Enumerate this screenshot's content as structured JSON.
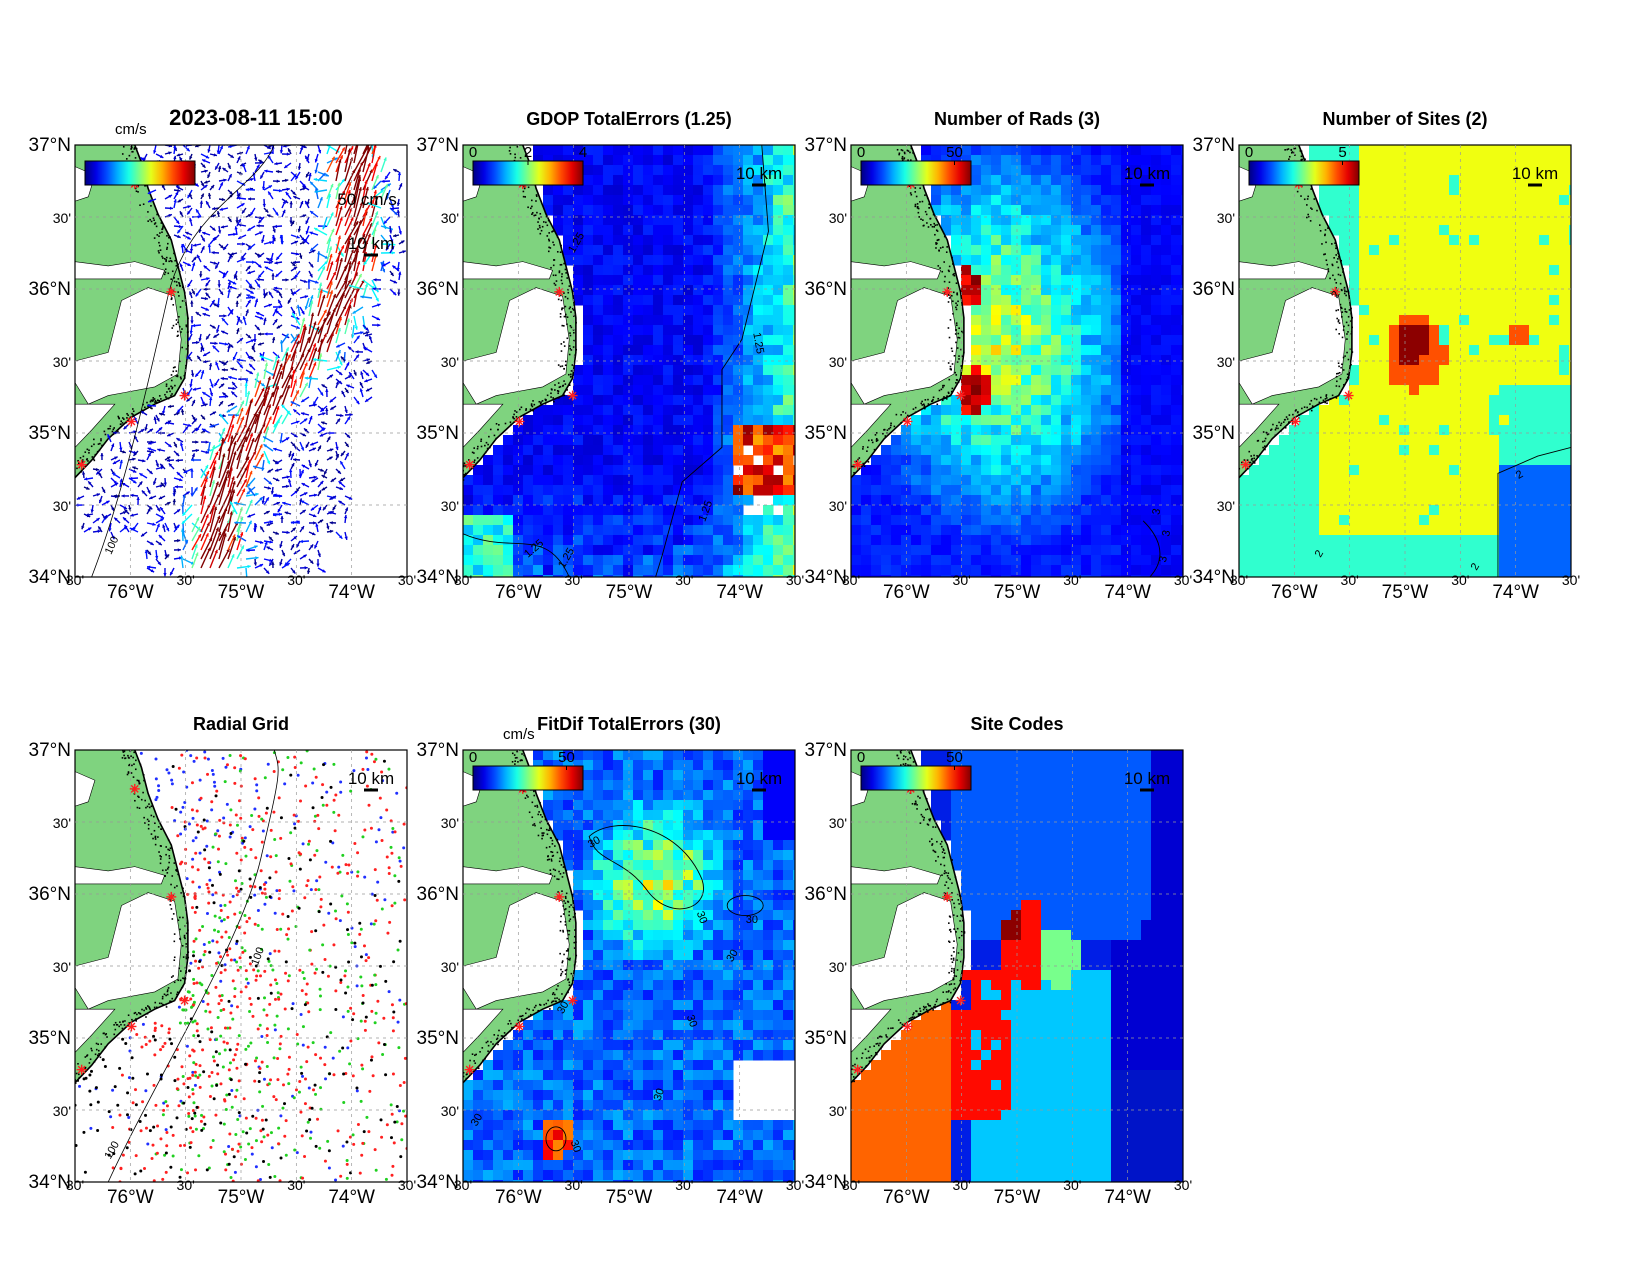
{
  "figure_timestamp": "2023-08-11 15:00",
  "panels": [
    {
      "id": "currents",
      "title": "",
      "colorbar": {
        "unit": "cm/s",
        "ticks": []
      },
      "vector_scale_label": "50 cm/s",
      "scale_bar": "10 km",
      "contour_labels": [
        "100"
      ]
    },
    {
      "id": "gdop",
      "title": "GDOP TotalErrors (1.25)",
      "colorbar": {
        "unit": "",
        "ticks": [
          "0",
          "2",
          "4"
        ]
      },
      "scale_bar": "10 km",
      "contour_labels": [
        "1.25",
        "1.25",
        "1.25",
        "1.25",
        "1.25"
      ]
    },
    {
      "id": "nrads",
      "title": "Number of Rads (3)",
      "colorbar": {
        "unit": "",
        "ticks": [
          "0",
          "50"
        ]
      },
      "scale_bar": "10 km",
      "contour_labels": [
        "3",
        "3",
        "3"
      ]
    },
    {
      "id": "nsites",
      "title": "Number of Sites (2)",
      "colorbar": {
        "unit": "",
        "ticks": [
          "0",
          "5"
        ]
      },
      "scale_bar": "10 km",
      "contour_labels": [
        "2",
        "2",
        "2",
        "2"
      ]
    },
    {
      "id": "radgrid",
      "title": "Radial Grid",
      "scale_bar": "10 km",
      "contour_labels": [
        "100",
        "100"
      ]
    },
    {
      "id": "fitdif",
      "title": "FitDif TotalErrors (30)",
      "colorbar": {
        "unit": "cm/s",
        "ticks": [
          "0",
          "50"
        ]
      },
      "scale_bar": "10 km",
      "contour_labels": [
        "30",
        "30",
        "30",
        "30",
        "30",
        "30",
        "30",
        "30",
        "30"
      ]
    },
    {
      "id": "sitecodes",
      "title": "Site Codes",
      "colorbar": {
        "unit": "",
        "ticks": [
          "0",
          "50"
        ]
      },
      "scale_bar": "10 km"
    }
  ],
  "axes": {
    "lat_labels": [
      "37°N",
      "30'",
      "36°N",
      "30'",
      "35°N",
      "30'",
      "34°N"
    ],
    "lon_labels": [
      "30'",
      "76°W",
      "30'",
      "75°W",
      "30'",
      "74°W",
      "30'"
    ]
  },
  "colors": {
    "land": "#7fd37f",
    "site_marker": "#ff2020",
    "contour": "#000000"
  }
}
